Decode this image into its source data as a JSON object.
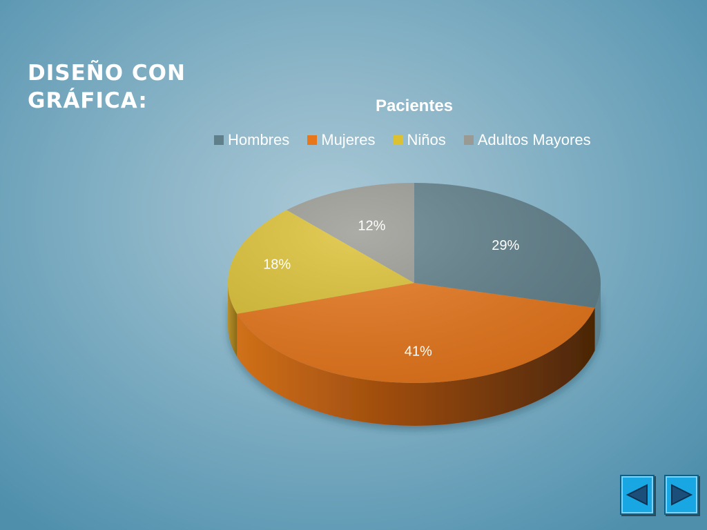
{
  "slide": {
    "title_line1": "DISEÑO CON",
    "title_line2": "GRÁFICA:"
  },
  "chart_data": {
    "type": "pie",
    "title": "Pacientes",
    "legend_position": "top",
    "three_d": true,
    "categories": [
      "Hombres",
      "Mujeres",
      "Niños",
      "Adultos Mayores"
    ],
    "values": [
      29,
      41,
      18,
      12
    ],
    "labels": [
      "29%",
      "41%",
      "18%",
      "12%"
    ],
    "colors": [
      "#5f7f8a",
      "#e8761a",
      "#dcc133",
      "#9a9a94"
    ]
  },
  "navigation": {
    "prev_icon": "triangle-left-icon",
    "next_icon": "triangle-right-icon",
    "icon_color": "#1b4f7a"
  }
}
